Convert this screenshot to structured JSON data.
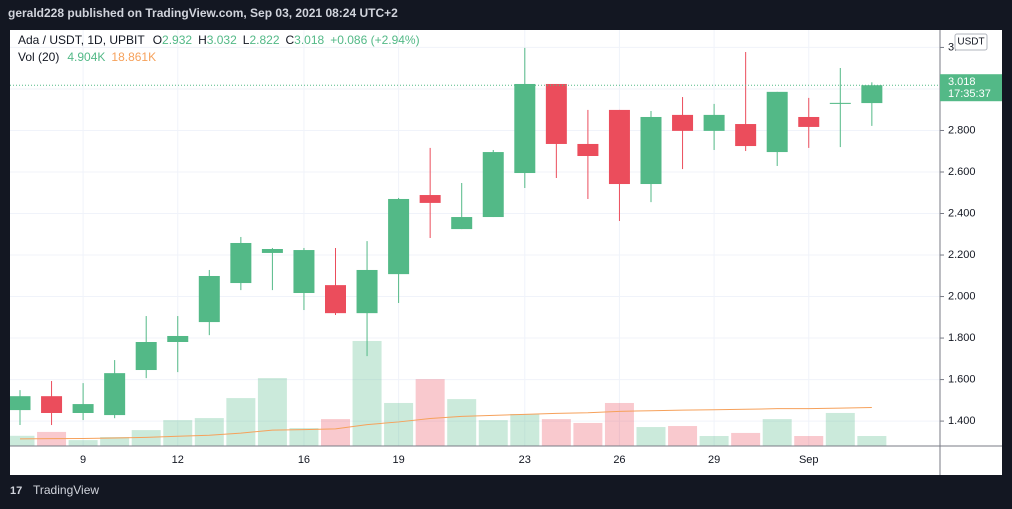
{
  "header": {
    "title": "gerald228 published on TradingView.com, Sep 03, 2021 08:24 UTC+2",
    "brand": "TradingView"
  },
  "chart_data": {
    "type": "candlestick",
    "legend": {
      "symbol": "Ada / USDT, 1D, UPBIT",
      "fields": [
        {
          "label": "O",
          "value": "2.932"
        },
        {
          "label": "H",
          "value": "3.032"
        },
        {
          "label": "L",
          "value": "2.822"
        },
        {
          "label": "C",
          "value": "3.018"
        }
      ],
      "change": "+0.086 (+2.94%)"
    },
    "currency": "USDT",
    "last_price_label": "3.018",
    "countdown": "17:35:37",
    "categories": [
      null,
      null,
      "9",
      null,
      null,
      "12",
      null,
      null,
      null,
      "16",
      null,
      null,
      "19",
      null,
      null,
      null,
      "23",
      null,
      null,
      "26",
      null,
      null,
      "29",
      null,
      null,
      "Sep",
      null,
      null
    ],
    "open": [
      1.453,
      1.52,
      1.439,
      1.429,
      1.646,
      1.781,
      1.877,
      2.065,
      2.21,
      2.017,
      2.055,
      1.92,
      2.108,
      2.489,
      2.325,
      2.383,
      2.595,
      3.024,
      2.735,
      2.899,
      2.542,
      2.875,
      2.798,
      2.831,
      2.696,
      2.865,
      2.928,
      2.932
    ],
    "high": [
      1.549,
      1.593,
      1.583,
      1.694,
      1.906,
      1.906,
      2.128,
      2.287,
      2.234,
      2.234,
      2.234,
      2.267,
      2.475,
      2.716,
      2.547,
      2.706,
      3.198,
      3.024,
      2.899,
      2.899,
      2.894,
      2.961,
      2.928,
      3.178,
      2.986,
      2.957,
      3.101,
      3.032
    ],
    "low": [
      1.381,
      1.381,
      1.405,
      1.414,
      1.607,
      1.636,
      1.814,
      2.031,
      2.031,
      1.935,
      1.911,
      1.713,
      1.969,
      2.282,
      2.325,
      2.383,
      2.523,
      2.571,
      2.47,
      2.364,
      2.455,
      2.614,
      2.706,
      2.701,
      2.629,
      2.716,
      2.72,
      2.822
    ],
    "close": [
      1.52,
      1.439,
      1.482,
      1.631,
      1.781,
      1.81,
      2.099,
      2.258,
      2.229,
      2.224,
      1.92,
      2.128,
      2.47,
      2.451,
      2.383,
      2.696,
      3.024,
      2.735,
      2.677,
      2.542,
      2.865,
      2.798,
      2.875,
      2.725,
      2.986,
      2.817,
      2.933,
      3.018
    ],
    "up_color": "#53b987",
    "down_color": "#eb4d5c",
    "ylim": [
      1.28,
      3.284
    ],
    "yticks": [
      {
        "value": 1.4,
        "label": "1.400"
      },
      {
        "value": 1.6,
        "label": "1.600"
      },
      {
        "value": 1.8,
        "label": "1.800"
      },
      {
        "value": 2.0,
        "label": "2.000"
      },
      {
        "value": 2.2,
        "label": "2.200"
      },
      {
        "value": 2.4,
        "label": "2.400"
      },
      {
        "value": 2.6,
        "label": "2.600"
      },
      {
        "value": 2.8,
        "label": "2.800"
      },
      {
        "value": 3.0,
        "label": "3.000"
      },
      {
        "value": 3.2,
        "label": "3.200"
      }
    ],
    "grid": true,
    "volume": {
      "name": "Vol (20)",
      "values": [
        5.0,
        6.9,
        2.9,
        4.4,
        7.8,
        12.7,
        13.7,
        23.5,
        33.3,
        8.8,
        13.2,
        51.5,
        21.1,
        32.8,
        23.0,
        12.7,
        15.7,
        13.2,
        11.3,
        21.1,
        9.3,
        9.8,
        4.9,
        6.4,
        13.2,
        4.9,
        16.2,
        4.904
      ],
      "last_value_label": "4.904K",
      "ma": [
        3.5,
        3.6,
        3.7,
        3.9,
        4.2,
        4.8,
        5.3,
        6.3,
        7.8,
        8.0,
        8.4,
        10.5,
        11.8,
        13.5,
        14.5,
        15.0,
        15.5,
        16.0,
        16.3,
        17.0,
        17.3,
        17.6,
        17.8,
        18.0,
        18.3,
        18.3,
        18.6,
        18.861
      ],
      "ma_label": "18.861K",
      "ma_color": "#f6a15b",
      "ylim": [
        0,
        204
      ]
    }
  }
}
